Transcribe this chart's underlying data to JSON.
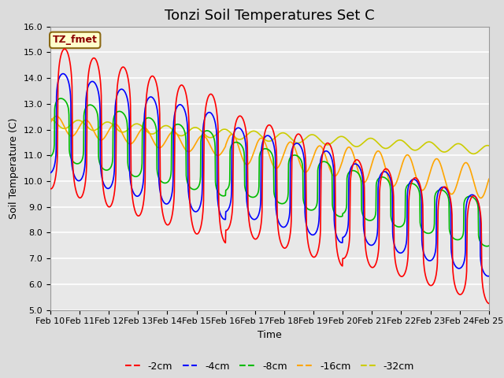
{
  "title": "Tonzi Soil Temperatures Set C",
  "xlabel": "Time",
  "ylabel": "Soil Temperature (C)",
  "ylim": [
    5.0,
    16.0
  ],
  "yticks": [
    5.0,
    6.0,
    7.0,
    8.0,
    9.0,
    10.0,
    11.0,
    12.0,
    13.0,
    14.0,
    15.0,
    16.0
  ],
  "xtick_labels": [
    "Feb 10",
    "Feb 11",
    "Feb 12",
    "Feb 13",
    "Feb 14",
    "Feb 15",
    "Feb 16",
    "Feb 17",
    "Feb 18",
    "Feb 19",
    "Feb 20",
    "Feb 21",
    "Feb 22",
    "Feb 23",
    "Feb 24",
    "Feb 25"
  ],
  "annotation_text": "TZ_fmet",
  "annotation_color": "#8B0000",
  "line_colors": {
    "-2cm": "#FF0000",
    "-4cm": "#0000FF",
    "-8cm": "#00BB00",
    "-16cm": "#FFA500",
    "-32cm": "#CCCC00"
  },
  "background_color": "#DCDCDC",
  "plot_bg_color": "#E8E8E8",
  "grid_color": "#FFFFFF",
  "title_fontsize": 13,
  "axis_label_fontsize": 9,
  "tick_fontsize": 8,
  "legend_fontsize": 9
}
